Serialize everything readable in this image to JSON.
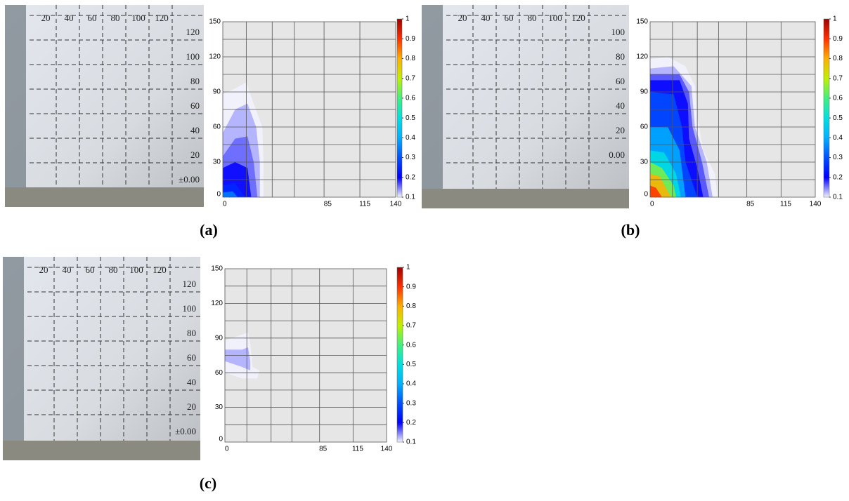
{
  "figure": {
    "colorbar_colors": [
      "#f2f2ff",
      "#0000ff",
      "#0050ff",
      "#00b0ff",
      "#00e0e0",
      "#40f080",
      "#c0f000",
      "#ffb000",
      "#ff3000",
      "#a00000"
    ],
    "panels": [
      {
        "caption": "(a)",
        "wall_labels": {
          "x": [
            "20",
            "40",
            "60",
            "80",
            "100",
            "120"
          ],
          "y": [
            "120",
            "100",
            "80",
            "60",
            "40",
            "20",
            "±0.00"
          ]
        },
        "plot": {
          "xlim": [
            0,
            140
          ],
          "ylim": [
            0,
            150
          ],
          "xticks": [
            0,
            85,
            115,
            140
          ],
          "yticks": [
            0,
            30,
            60,
            90,
            120,
            150
          ],
          "xgrid": [
            19,
            40,
            58,
            82,
            111
          ],
          "ygrid": [
            15,
            30,
            45,
            60,
            75,
            90,
            105,
            120,
            135
          ],
          "clim": [
            0.1,
            1
          ],
          "cticks": [
            0.1,
            0.2,
            0.3,
            0.4,
            0.5,
            0.6,
            0.7,
            0.8,
            0.9,
            1
          ],
          "contours": [
            {
              "level": 0.1,
              "x": [
                0,
                0,
                10,
                19,
                25,
                32,
                33,
                33
              ],
              "y": [
                0,
                88,
                93,
                98,
                80,
                60,
                30,
                0
              ]
            },
            {
              "level": 0.13,
              "x": [
                0,
                0,
                10,
                20,
                27,
                30,
                30
              ],
              "y": [
                0,
                55,
                75,
                80,
                60,
                30,
                0
              ]
            },
            {
              "level": 0.16,
              "x": [
                0,
                0,
                10,
                20,
                25,
                28
              ],
              "y": [
                0,
                35,
                50,
                52,
                30,
                0
              ]
            },
            {
              "level": 0.2,
              "x": [
                0,
                0,
                10,
                20,
                23
              ],
              "y": [
                0,
                25,
                30,
                25,
                0
              ]
            },
            {
              "level": 0.25,
              "x": [
                0,
                0,
                10,
                18
              ],
              "y": [
                0,
                10,
                12,
                0
              ]
            },
            {
              "level": 0.35,
              "x": [
                0,
                0,
                8,
                12
              ],
              "y": [
                0,
                4,
                5,
                0
              ]
            }
          ]
        }
      },
      {
        "caption": "(b)",
        "wall_labels": {
          "x": [
            "20",
            "40",
            "60",
            "80",
            "100",
            "120"
          ],
          "y": [
            "100",
            "80",
            "60",
            "40",
            "20",
            "0.00"
          ]
        },
        "plot": {
          "xlim": [
            0,
            140
          ],
          "ylim": [
            0,
            150
          ],
          "xticks": [
            0,
            85,
            115,
            140
          ],
          "yticks": [
            0,
            30,
            60,
            90,
            120,
            150
          ],
          "xgrid": [
            19,
            40,
            58,
            82,
            111
          ],
          "ygrid": [
            15,
            30,
            45,
            60,
            75,
            90,
            105,
            120,
            135
          ],
          "clim": [
            0.1,
            1
          ],
          "cticks": [
            0.1,
            0.2,
            0.3,
            0.4,
            0.5,
            0.6,
            0.7,
            0.8,
            0.9,
            1
          ],
          "contours": [
            {
              "level": 0.1,
              "x": [
                0,
                0,
                15,
                30,
                38,
                40,
                45,
                55,
                57
              ],
              "y": [
                0,
                118,
                120,
                112,
                95,
                70,
                40,
                20,
                0
              ]
            },
            {
              "level": 0.13,
              "x": [
                0,
                0,
                20,
                35,
                38,
                48,
                53
              ],
              "y": [
                0,
                110,
                112,
                95,
                60,
                30,
                0
              ]
            },
            {
              "level": 0.17,
              "x": [
                0,
                0,
                25,
                33,
                36,
                44,
                50
              ],
              "y": [
                0,
                105,
                105,
                90,
                60,
                30,
                0
              ]
            },
            {
              "level": 0.2,
              "x": [
                0,
                0,
                25,
                32,
                33,
                40,
                45
              ],
              "y": [
                0,
                100,
                100,
                80,
                50,
                25,
                0
              ]
            },
            {
              "level": 0.3,
              "x": [
                0,
                0,
                20,
                27,
                30,
                40
              ],
              "y": [
                0,
                90,
                88,
                60,
                30,
                0
              ]
            },
            {
              "level": 0.4,
              "x": [
                0,
                0,
                15,
                25,
                30
              ],
              "y": [
                0,
                60,
                60,
                40,
                0
              ]
            },
            {
              "level": 0.5,
              "x": [
                0,
                0,
                12,
                22,
                26
              ],
              "y": [
                0,
                40,
                38,
                20,
                0
              ]
            },
            {
              "level": 0.65,
              "x": [
                0,
                0,
                10,
                20,
                22
              ],
              "y": [
                0,
                30,
                25,
                10,
                0
              ]
            },
            {
              "level": 0.8,
              "x": [
                0,
                0,
                8,
                15,
                18
              ],
              "y": [
                0,
                20,
                18,
                5,
                0
              ]
            },
            {
              "level": 0.9,
              "x": [
                0,
                0,
                5,
                10
              ],
              "y": [
                0,
                10,
                8,
                0
              ]
            }
          ]
        }
      },
      {
        "caption": "(c)",
        "wall_labels": {
          "x": [
            "20",
            "40",
            "60",
            "80",
            "100",
            "120"
          ],
          "y": [
            "120",
            "100",
            "80",
            "60",
            "40",
            "20",
            "±0.00"
          ]
        },
        "plot": {
          "xlim": [
            0,
            140
          ],
          "ylim": [
            0,
            150
          ],
          "xticks": [
            0,
            85,
            115,
            140
          ],
          "yticks": [
            0,
            30,
            60,
            90,
            120,
            150
          ],
          "xgrid": [
            19,
            40,
            58,
            82,
            111
          ],
          "ygrid": [
            15,
            30,
            45,
            60,
            75,
            90,
            105,
            120,
            135
          ],
          "clim": [
            0.1,
            1
          ],
          "cticks": [
            0.1,
            0.2,
            0.3,
            0.4,
            0.5,
            0.6,
            0.7,
            0.8,
            0.9,
            1
          ],
          "contours": [
            {
              "level": 0.1,
              "x": [
                0,
                0,
                12,
                20,
                22,
                24,
                30,
                28,
                15
              ],
              "y": [
                60,
                88,
                92,
                95,
                85,
                65,
                62,
                55,
                55
              ]
            },
            {
              "level": 0.13,
              "x": [
                0,
                0,
                15,
                20,
                22,
                22,
                15
              ],
              "y": [
                70,
                80,
                80,
                82,
                70,
                62,
                65
              ]
            }
          ]
        }
      }
    ]
  }
}
